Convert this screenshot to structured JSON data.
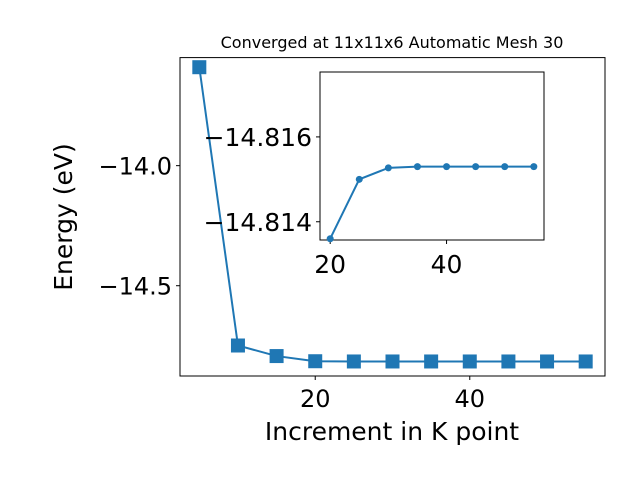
{
  "chart_data": [
    {
      "type": "line",
      "title": "Converged at 11x11x6 Automatic Mesh 30",
      "xlabel": "Increment in K point",
      "ylabel": "Energy (eV)",
      "marker": "square",
      "x": [
        5,
        10,
        15,
        20,
        25,
        30,
        35,
        40,
        45,
        50,
        55
      ],
      "series": [
        {
          "values": [
            -13.59,
            -14.749,
            -14.793,
            -14.8145,
            -14.8155,
            -14.8155,
            -14.8155,
            -14.8155,
            -14.8155,
            -14.8155,
            -14.8155
          ]
        }
      ],
      "xlim": [
        2.5,
        57.5
      ],
      "ylim": [
        -14.876,
        -13.55
      ],
      "xticks": [
        20,
        40
      ],
      "yticks": [
        -14.0,
        -14.5
      ],
      "xtick_labels": [
        "20",
        "40"
      ],
      "ytick_labels": [
        "−14.0",
        "−14.5"
      ],
      "grid": false,
      "color": "#1f77b4"
    },
    {
      "type": "line",
      "title": "",
      "xlabel": "",
      "ylabel": "",
      "marker": "circle",
      "x": [
        20,
        25,
        30,
        35,
        40,
        45,
        50,
        55
      ],
      "series": [
        {
          "values": [
            -14.8136,
            -14.815,
            -14.81527,
            -14.8153,
            -14.8153,
            -14.8153,
            -14.8153,
            -14.8153
          ]
        }
      ],
      "xlim": [
        18.25,
        56.75
      ],
      "ylim": [
        -14.81357,
        -14.81753
      ],
      "xticks": [
        20,
        40
      ],
      "yticks": [
        -14.816,
        -14.814
      ],
      "xtick_labels": [
        "20",
        "40"
      ],
      "ytick_labels": [
        "−14.816",
        "−14.814"
      ],
      "grid": false,
      "color": "#1f77b4"
    }
  ]
}
